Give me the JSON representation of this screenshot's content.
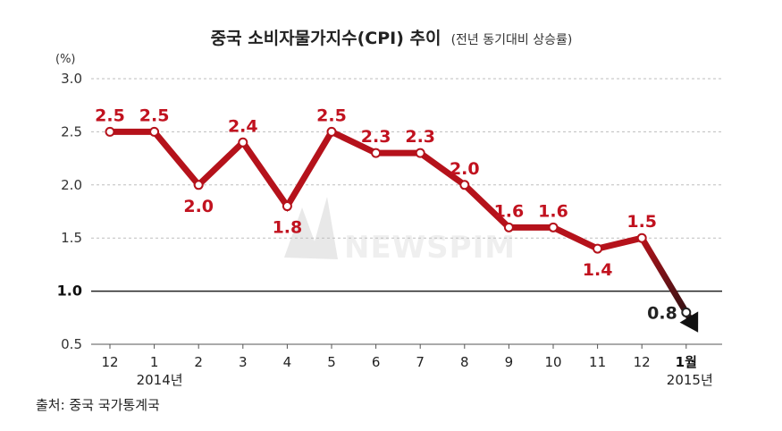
{
  "title": "중국 소비자물가지수(CPI) 추이",
  "subtitle": "(전년 동기대비 상승률)",
  "unit": "(%)",
  "source": "출처: 중국 국가통계국",
  "watermark": "NEWSPIM",
  "colors": {
    "line": "#b5121b",
    "arrow": "#111111",
    "reference": "#222222",
    "grid": "#bdbdbd"
  },
  "chart_data": {
    "type": "line",
    "categories": [
      "12",
      "1",
      "2",
      "3",
      "4",
      "5",
      "6",
      "7",
      "8",
      "9",
      "10",
      "11",
      "12",
      "1월"
    ],
    "year_labels": [
      {
        "index": 1,
        "text": "2014년"
      },
      {
        "index": 13,
        "text": "2015년"
      }
    ],
    "values": [
      2.5,
      2.5,
      2.0,
      2.4,
      1.8,
      2.5,
      2.3,
      2.3,
      2.0,
      1.6,
      1.6,
      1.4,
      1.5,
      0.8
    ],
    "data_labels": [
      "2.5",
      "2.5",
      "2.0",
      "2.4",
      "1.8",
      "2.5",
      "2.3",
      "2.3",
      "2.0",
      "1.6",
      "1.6",
      "1.4",
      "1.5",
      "0.8"
    ],
    "label_position": [
      "above",
      "above",
      "below",
      "above",
      "below",
      "above",
      "above",
      "above",
      "above",
      "above",
      "above",
      "below",
      "above",
      "left"
    ],
    "yticks": [
      "3.0",
      "2.5",
      "2.0",
      "1.5",
      "1.0",
      "0.5"
    ],
    "ylim": [
      0.5,
      3.0
    ],
    "reference_line": 1.0,
    "grid": true,
    "legend": "none"
  }
}
